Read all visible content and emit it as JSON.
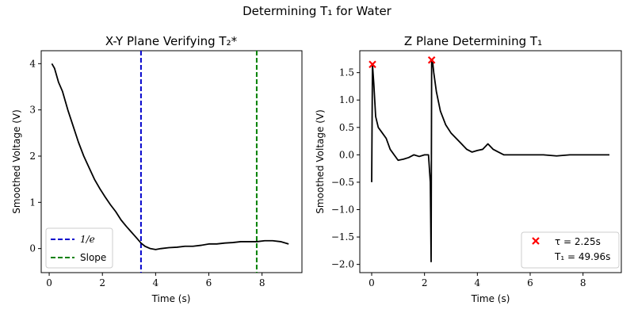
{
  "figure": {
    "title": "Determining T₁ for Water"
  },
  "chart_data": [
    {
      "type": "line",
      "title": "X-Y Plane Verifying T₂*",
      "xlabel": "Time (s)",
      "ylabel": "Smoothed Voltage (V)",
      "xlim": [
        -0.3,
        9.5
      ],
      "ylim": [
        -0.52,
        4.28
      ],
      "xticks": [
        0,
        2,
        4,
        6,
        8
      ],
      "yticks": [
        0,
        1,
        2,
        3,
        4
      ],
      "grid": false,
      "legend_position": "bottom-left",
      "series": [
        {
          "color": "#000000",
          "x": [
            0.1,
            0.2,
            0.35,
            0.5,
            0.7,
            0.9,
            1.1,
            1.3,
            1.5,
            1.7,
            1.9,
            2.1,
            2.3,
            2.5,
            2.7,
            2.9,
            3.1,
            3.3,
            3.45,
            3.6,
            3.8,
            4.0,
            4.2,
            4.5,
            4.8,
            5.1,
            5.4,
            5.7,
            6.0,
            6.3,
            6.6,
            6.9,
            7.2,
            7.5,
            7.8,
            8.1,
            8.4,
            8.7,
            9.0
          ],
          "y": [
            4.0,
            3.9,
            3.6,
            3.4,
            3.0,
            2.65,
            2.3,
            2.0,
            1.75,
            1.5,
            1.3,
            1.12,
            0.95,
            0.8,
            0.62,
            0.48,
            0.35,
            0.22,
            0.12,
            0.05,
            0.0,
            -0.02,
            0.0,
            0.02,
            0.03,
            0.05,
            0.05,
            0.07,
            0.1,
            0.1,
            0.12,
            0.13,
            0.15,
            0.15,
            0.15,
            0.17,
            0.17,
            0.15,
            0.1
          ]
        }
      ],
      "vlines": [
        {
          "name": "1/e",
          "x": 3.45,
          "color": "#0000cc",
          "style": "dashed"
        },
        {
          "name": "Slope",
          "x": 7.8,
          "color": "#008000",
          "style": "dashed"
        }
      ]
    },
    {
      "type": "line",
      "title": "Z Plane Determining T₁",
      "xlabel": "Time (s)",
      "ylabel": "Smoothed Voltage (V)",
      "xlim": [
        -0.45,
        9.45
      ],
      "ylim": [
        -2.15,
        1.9
      ],
      "xticks": [
        0,
        2,
        4,
        6,
        8
      ],
      "yticks": [
        -2.0,
        -1.5,
        -1.0,
        -0.5,
        0.0,
        0.5,
        1.0,
        1.5
      ],
      "grid": false,
      "legend_position": "bottom-right",
      "series": [
        {
          "color": "#000000",
          "x": [
            0.0,
            0.03,
            0.08,
            0.15,
            0.25,
            0.4,
            0.55,
            0.7,
            0.85,
            1.0,
            1.2,
            1.4,
            1.6,
            1.8,
            2.0,
            2.15,
            2.22,
            2.25,
            2.27,
            2.3,
            2.35,
            2.45,
            2.6,
            2.8,
            3.0,
            3.2,
            3.4,
            3.6,
            3.8,
            4.0,
            4.2,
            4.4,
            4.6,
            4.8,
            5.0,
            5.5,
            6.0,
            6.5,
            7.0,
            7.5,
            8.0,
            8.5,
            9.0
          ],
          "y": [
            -0.5,
            1.65,
            1.3,
            0.7,
            0.5,
            0.4,
            0.3,
            0.1,
            0.0,
            -0.1,
            -0.08,
            -0.05,
            0.0,
            -0.03,
            0.0,
            0.0,
            -0.5,
            -1.95,
            1.7,
            1.73,
            1.5,
            1.15,
            0.8,
            0.55,
            0.4,
            0.3,
            0.2,
            0.1,
            0.05,
            0.08,
            0.1,
            0.2,
            0.1,
            0.05,
            0.0,
            0.0,
            0.0,
            0.0,
            -0.02,
            0.0,
            0.0,
            0.0,
            0.0
          ]
        }
      ],
      "markers": {
        "color": "#ff0000",
        "symbol": "x",
        "points": [
          {
            "x": 0.03,
            "y": 1.65
          },
          {
            "x": 2.27,
            "y": 1.73
          }
        ]
      },
      "legend": {
        "tau_label": "τ = 2.25s",
        "t1_label": "T₁ = 49.96s"
      }
    }
  ]
}
